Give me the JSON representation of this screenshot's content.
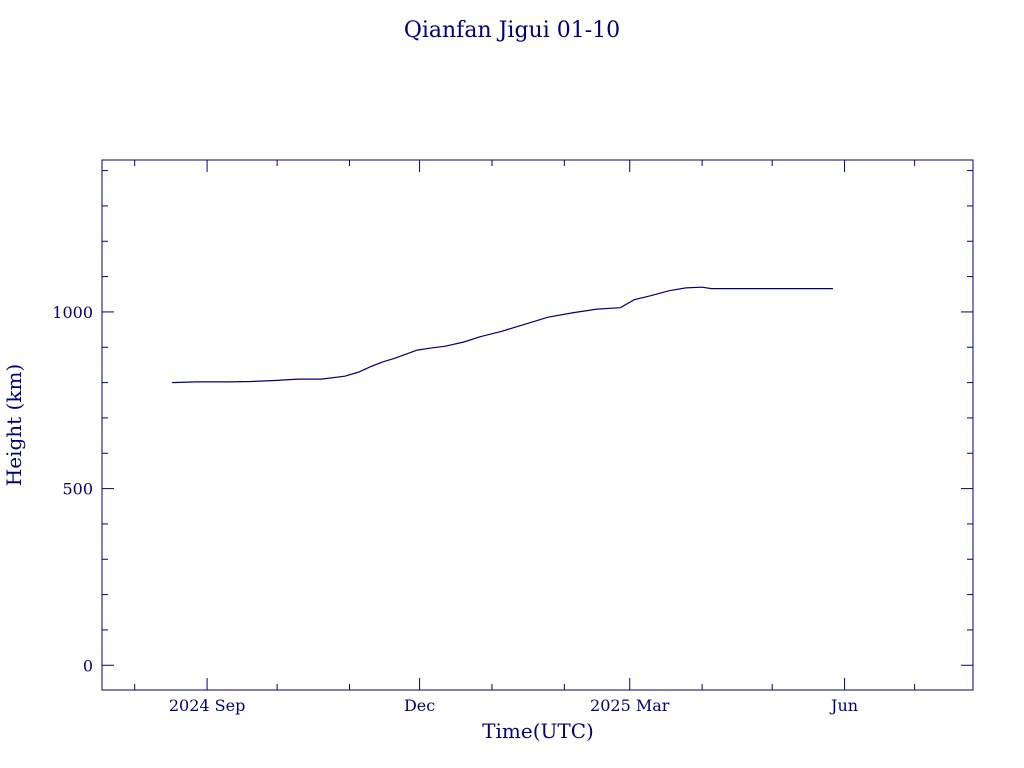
{
  "chart_data": {
    "type": "line",
    "title": "Qianfan Jigui 01-10",
    "xlabel": "Time(UTC)",
    "ylabel": "Height (km)",
    "xlim": [
      "2024-07-18",
      "2025-07-26"
    ],
    "ylim": [
      -70,
      1430
    ],
    "x_ticks": [
      {
        "date": "2024-09-01",
        "label": "2024 Sep"
      },
      {
        "date": "2024-12-01",
        "label": "Dec"
      },
      {
        "date": "2025-03-01",
        "label": "2025 Mar"
      },
      {
        "date": "2025-06-01",
        "label": "Jun"
      }
    ],
    "y_ticks": [
      {
        "value": 0,
        "label": "0"
      },
      {
        "value": 500,
        "label": "500"
      },
      {
        "value": 1000,
        "label": "1000"
      }
    ],
    "grid": false,
    "colors": {
      "axis": "#00007a",
      "series": "#00007a"
    },
    "series": [
      {
        "x": [
          "2024-08-17",
          "2024-08-27",
          "2024-09-10",
          "2024-09-20",
          "2024-09-30",
          "2024-10-10",
          "2024-10-20",
          "2024-10-30",
          "2024-11-05",
          "2024-11-10",
          "2024-11-15",
          "2024-11-20",
          "2024-11-25",
          "2024-11-30",
          "2024-12-05",
          "2024-12-12",
          "2024-12-20",
          "2024-12-27",
          "2025-01-05",
          "2025-01-15",
          "2025-01-25",
          "2025-02-05",
          "2025-02-15",
          "2025-02-25",
          "2025-03-03",
          "2025-03-10",
          "2025-03-18",
          "2025-03-25",
          "2025-04-01",
          "2025-04-05",
          "2025-05-27"
        ],
        "y": [
          800,
          802,
          802,
          803,
          806,
          810,
          810,
          818,
          830,
          845,
          858,
          868,
          880,
          892,
          897,
          903,
          915,
          930,
          945,
          965,
          985,
          998,
          1008,
          1012,
          1035,
          1046,
          1060,
          1068,
          1070,
          1066,
          1066
        ]
      }
    ]
  }
}
